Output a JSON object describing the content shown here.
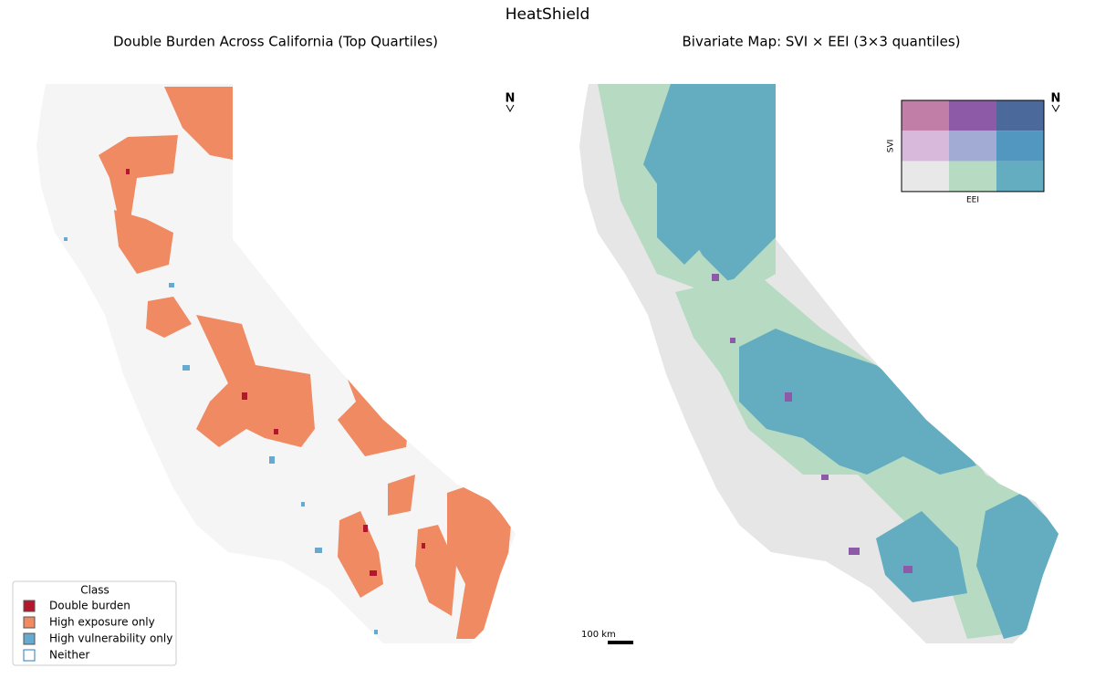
{
  "title": "HeatShield",
  "panels": [
    {
      "title": "Double Burden Across California (Top Quartiles)",
      "north": "N",
      "legend": {
        "title": "Class",
        "items": [
          {
            "label": "Double burden",
            "color": "#b2182b"
          },
          {
            "label": "High exposure only",
            "color": "#ef8a62"
          },
          {
            "label": "High vulnerability only",
            "color": "#67a9cf"
          },
          {
            "label": "Neither",
            "color": "#ffffff"
          }
        ]
      }
    },
    {
      "title": "Bivariate Map: SVI × EEI (3×3 quantiles)",
      "north": "N",
      "bivariate_legend": {
        "y_label": "SVI",
        "x_label": "EEI",
        "colors": [
          [
            "#c17fa8",
            "#8d5aa8",
            "#4b6a9b"
          ],
          [
            "#d8b9dc",
            "#a1abd3",
            "#5297c0"
          ],
          [
            "#e8e8e8",
            "#b6dbc2",
            "#64adc1"
          ]
        ]
      },
      "scale_bar": "100 km"
    }
  ]
}
